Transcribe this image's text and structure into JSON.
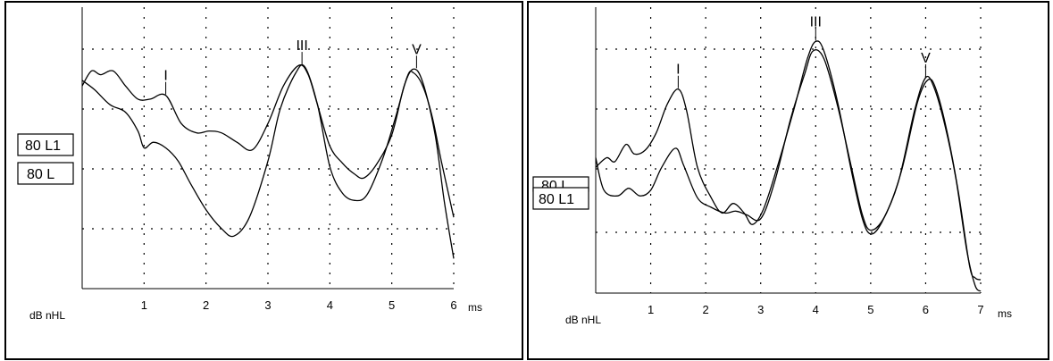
{
  "chart_data": [
    {
      "type": "line",
      "title": "",
      "xlabel": "ms",
      "ylabel": "dB nHL",
      "xlim": [
        0,
        6
      ],
      "ylim": [
        0,
        7.5
      ],
      "x_ticks": [
        "1",
        "2",
        "3",
        "4",
        "5",
        "6"
      ],
      "grid": true,
      "series": [
        {
          "name": "80 L1",
          "points": [
            [
              0,
              5.4
            ],
            [
              0.15,
              5.8
            ],
            [
              0.3,
              5.7
            ],
            [
              0.5,
              5.8
            ],
            [
              0.7,
              5.4
            ],
            [
              0.9,
              5.05
            ],
            [
              1.1,
              5.05
            ],
            [
              1.35,
              5.15
            ],
            [
              1.6,
              4.4
            ],
            [
              1.85,
              4.15
            ],
            [
              2.05,
              4.2
            ],
            [
              2.25,
              4.15
            ],
            [
              2.5,
              3.9
            ],
            [
              2.75,
              3.7
            ],
            [
              3.0,
              4.4
            ],
            [
              3.25,
              5.4
            ],
            [
              3.5,
              5.95
            ],
            [
              3.65,
              5.7
            ],
            [
              3.8,
              4.9
            ],
            [
              4.0,
              3.8
            ],
            [
              4.2,
              3.35
            ],
            [
              4.4,
              3.05
            ],
            [
              4.55,
              2.95
            ],
            [
              4.75,
              3.3
            ],
            [
              5.0,
              4.1
            ],
            [
              5.2,
              5.4
            ],
            [
              5.35,
              5.85
            ],
            [
              5.5,
              5.5
            ],
            [
              5.7,
              4.1
            ],
            [
              5.85,
              2.3
            ],
            [
              6.0,
              0.8
            ]
          ]
        },
        {
          "name": "80 L",
          "points": [
            [
              0,
              5.55
            ],
            [
              0.2,
              5.3
            ],
            [
              0.45,
              4.9
            ],
            [
              0.7,
              4.7
            ],
            [
              0.9,
              4.2
            ],
            [
              1.0,
              3.75
            ],
            [
              1.15,
              3.9
            ],
            [
              1.35,
              3.75
            ],
            [
              1.55,
              3.4
            ],
            [
              1.75,
              2.8
            ],
            [
              2.0,
              2.1
            ],
            [
              2.25,
              1.6
            ],
            [
              2.45,
              1.4
            ],
            [
              2.7,
              1.9
            ],
            [
              3.0,
              3.4
            ],
            [
              3.2,
              4.8
            ],
            [
              3.45,
              5.75
            ],
            [
              3.6,
              5.9
            ],
            [
              3.8,
              4.9
            ],
            [
              4.0,
              3.25
            ],
            [
              4.2,
              2.55
            ],
            [
              4.4,
              2.35
            ],
            [
              4.6,
              2.5
            ],
            [
              4.85,
              3.45
            ],
            [
              5.05,
              4.5
            ],
            [
              5.25,
              5.65
            ],
            [
              5.35,
              5.75
            ],
            [
              5.5,
              5.4
            ],
            [
              5.65,
              4.6
            ],
            [
              5.8,
              3.4
            ],
            [
              6.0,
              1.9
            ]
          ]
        }
      ],
      "peak_labels": [
        {
          "label": "I",
          "x": 1.35,
          "y": 5.15
        },
        {
          "label": "III",
          "x": 3.55,
          "y": 5.95
        },
        {
          "label": "V",
          "x": 5.4,
          "y": 5.85
        }
      ]
    },
    {
      "type": "line",
      "title": "",
      "xlabel": "ms",
      "ylabel": "dB nHL",
      "xlim": [
        0,
        7
      ],
      "ylim": [
        0,
        7.5
      ],
      "x_ticks": [
        "1",
        "2",
        "3",
        "4",
        "5",
        "6",
        "7"
      ],
      "grid": true,
      "series": [
        {
          "name": "80 L1",
          "points": [
            [
              0,
              3.3
            ],
            [
              0.2,
              3.55
            ],
            [
              0.35,
              3.45
            ],
            [
              0.55,
              3.9
            ],
            [
              0.7,
              3.65
            ],
            [
              0.9,
              3.75
            ],
            [
              1.1,
              4.2
            ],
            [
              1.3,
              4.95
            ],
            [
              1.5,
              5.35
            ],
            [
              1.65,
              4.8
            ],
            [
              1.85,
              3.3
            ],
            [
              2.1,
              2.5
            ],
            [
              2.3,
              2.1
            ],
            [
              2.5,
              2.35
            ],
            [
              2.7,
              2.1
            ],
            [
              2.85,
              1.8
            ],
            [
              3.05,
              2.2
            ],
            [
              3.3,
              3.3
            ],
            [
              3.6,
              4.8
            ],
            [
              3.85,
              6.15
            ],
            [
              4.0,
              6.6
            ],
            [
              4.15,
              6.35
            ],
            [
              4.4,
              5.0
            ],
            [
              4.65,
              3.2
            ],
            [
              4.85,
              1.95
            ],
            [
              5.0,
              1.55
            ],
            [
              5.2,
              1.85
            ],
            [
              5.5,
              2.9
            ],
            [
              5.8,
              4.8
            ],
            [
              6.0,
              5.65
            ],
            [
              6.15,
              5.4
            ],
            [
              6.35,
              4.4
            ],
            [
              6.55,
              3.0
            ],
            [
              6.75,
              1.1
            ],
            [
              6.9,
              0.2
            ],
            [
              7.0,
              0.05
            ]
          ]
        },
        {
          "name": "80 L",
          "points": [
            [
              0,
              3.55
            ],
            [
              0.15,
              2.7
            ],
            [
              0.4,
              2.55
            ],
            [
              0.6,
              2.75
            ],
            [
              0.8,
              2.55
            ],
            [
              1.0,
              2.7
            ],
            [
              1.2,
              3.3
            ],
            [
              1.45,
              3.8
            ],
            [
              1.6,
              3.35
            ],
            [
              1.85,
              2.5
            ],
            [
              2.1,
              2.25
            ],
            [
              2.35,
              2.1
            ],
            [
              2.55,
              2.15
            ],
            [
              2.75,
              2.05
            ],
            [
              3.0,
              1.95
            ],
            [
              3.25,
              2.9
            ],
            [
              3.55,
              4.6
            ],
            [
              3.8,
              5.75
            ],
            [
              3.95,
              6.35
            ],
            [
              4.15,
              6.15
            ],
            [
              4.4,
              4.9
            ],
            [
              4.65,
              3.3
            ],
            [
              4.85,
              2.05
            ],
            [
              5.0,
              1.65
            ],
            [
              5.25,
              2.0
            ],
            [
              5.55,
              3.15
            ],
            [
              5.85,
              5.0
            ],
            [
              6.05,
              5.6
            ],
            [
              6.2,
              5.3
            ],
            [
              6.4,
              4.15
            ],
            [
              6.6,
              2.6
            ],
            [
              6.8,
              0.7
            ],
            [
              6.9,
              0.4
            ],
            [
              7.0,
              0.35
            ]
          ]
        }
      ],
      "peak_labels": [
        {
          "label": "I",
          "x": 1.5,
          "y": 5.35
        },
        {
          "label": "III",
          "x": 4.0,
          "y": 6.6
        },
        {
          "label": "V",
          "x": 6.0,
          "y": 5.65
        }
      ]
    }
  ]
}
